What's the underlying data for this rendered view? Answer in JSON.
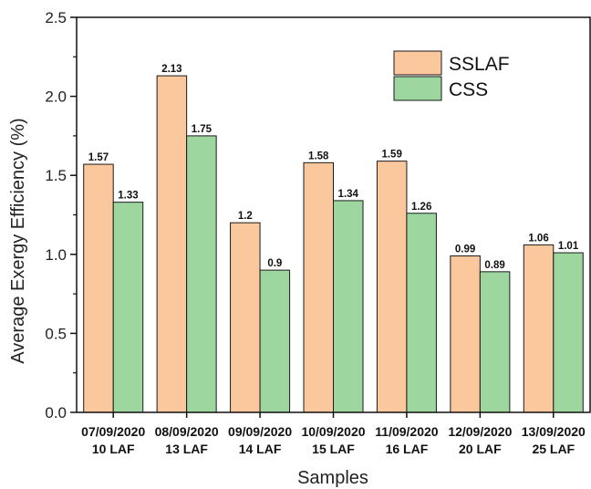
{
  "chart_data": {
    "type": "bar",
    "xlabel": "Samples",
    "ylabel": "Average Exergy Efficiency (%)",
    "ylim": [
      0,
      2.5
    ],
    "yticks": [
      "0.0",
      "0.5",
      "1.0",
      "1.5",
      "2.0",
      "2.5"
    ],
    "categories": [
      [
        "07/09/2020",
        "10 LAF"
      ],
      [
        "08/09/2020",
        "13 LAF"
      ],
      [
        "09/09/2020",
        "14 LAF"
      ],
      [
        "10/09/2020",
        "15 LAF"
      ],
      [
        "11/09/2020",
        "16 LAF"
      ],
      [
        "12/09/2020",
        "20 LAF"
      ],
      [
        "13/09/2020",
        "25 LAF"
      ]
    ],
    "series": [
      {
        "name": "SSLAF",
        "color": "#FBC79C",
        "values": [
          1.57,
          2.13,
          1.2,
          1.58,
          1.59,
          0.99,
          1.06
        ],
        "labels": [
          "1.57",
          "2.13",
          "1.2",
          "1.58",
          "1.59",
          "0.99",
          "1.06"
        ]
      },
      {
        "name": "CSS",
        "color": "#9ED69F",
        "values": [
          1.33,
          1.75,
          0.9,
          1.34,
          1.26,
          0.89,
          1.01
        ],
        "labels": [
          "1.33",
          "1.75",
          "0.9",
          "1.34",
          "1.26",
          "0.89",
          "1.01"
        ]
      }
    ],
    "legend_position": "top-right",
    "grid": false
  }
}
